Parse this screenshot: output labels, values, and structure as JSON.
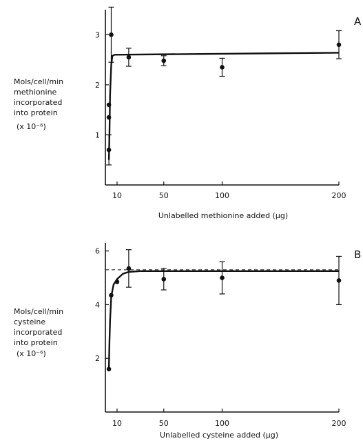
{
  "chart_data": [
    {
      "type": "scatter",
      "panel_letter": "A",
      "ylabel": [
        "Mols/cell/min",
        "methionine",
        "incorporated",
        "into protein",
        "(x 10⁻⁶)"
      ],
      "xlabel": "Unlabelled methionine added (µg)",
      "x_ticks": [
        10,
        50,
        100,
        200
      ],
      "y_ticks": [
        1,
        2,
        3
      ],
      "xlim": [
        0,
        200
      ],
      "ylim": [
        0,
        3.5
      ],
      "points": [
        {
          "x": 3,
          "y": 0.7,
          "err": 0.3
        },
        {
          "x": 3,
          "y": 1.35,
          "err": 0
        },
        {
          "x": 3,
          "y": 1.6,
          "err": 0
        },
        {
          "x": 5,
          "y": 3.0,
          "err": 0.55
        },
        {
          "x": 20,
          "y": 2.55,
          "err": 0.18
        },
        {
          "x": 50,
          "y": 2.48,
          "err": 0.1
        },
        {
          "x": 100,
          "y": 2.35,
          "err": 0.18
        },
        {
          "x": 200,
          "y": 2.8,
          "err": 0.28
        }
      ],
      "curve": [
        [
          3,
          0.5
        ],
        [
          3.5,
          1.0
        ],
        [
          4,
          1.8
        ],
        [
          5,
          2.4
        ],
        [
          6,
          2.58
        ],
        [
          8,
          2.6
        ],
        [
          100,
          2.62
        ],
        [
          200,
          2.64
        ]
      ],
      "dashed_level": null
    },
    {
      "type": "scatter",
      "panel_letter": "B",
      "ylabel": [
        "Mols/cell/min",
        "cysteine",
        "incorporated",
        "into protein",
        "(x 10⁻⁶)"
      ],
      "xlabel": "Unlabelled cysteine added (µg)",
      "x_ticks": [
        10,
        50,
        100,
        200
      ],
      "y_ticks": [
        2,
        4,
        6
      ],
      "xlim": [
        0,
        200
      ],
      "ylim": [
        0,
        6.3
      ],
      "points": [
        {
          "x": 3,
          "y": 1.6,
          "err": 0
        },
        {
          "x": 5,
          "y": 4.35,
          "err": 0
        },
        {
          "x": 10,
          "y": 4.85,
          "err": 0
        },
        {
          "x": 20,
          "y": 5.35,
          "err": 0.7
        },
        {
          "x": 50,
          "y": 4.95,
          "err": 0.4
        },
        {
          "x": 100,
          "y": 5.0,
          "err": 0.6
        },
        {
          "x": 200,
          "y": 4.9,
          "err": 0.9
        }
      ],
      "curve": [
        [
          3,
          1.6
        ],
        [
          3.5,
          2.6
        ],
        [
          4,
          3.4
        ],
        [
          5,
          4.3
        ],
        [
          7,
          4.75
        ],
        [
          10,
          4.95
        ],
        [
          15,
          5.15
        ],
        [
          20,
          5.22
        ],
        [
          30,
          5.25
        ],
        [
          200,
          5.25
        ]
      ],
      "dashed_level": 5.3
    }
  ]
}
